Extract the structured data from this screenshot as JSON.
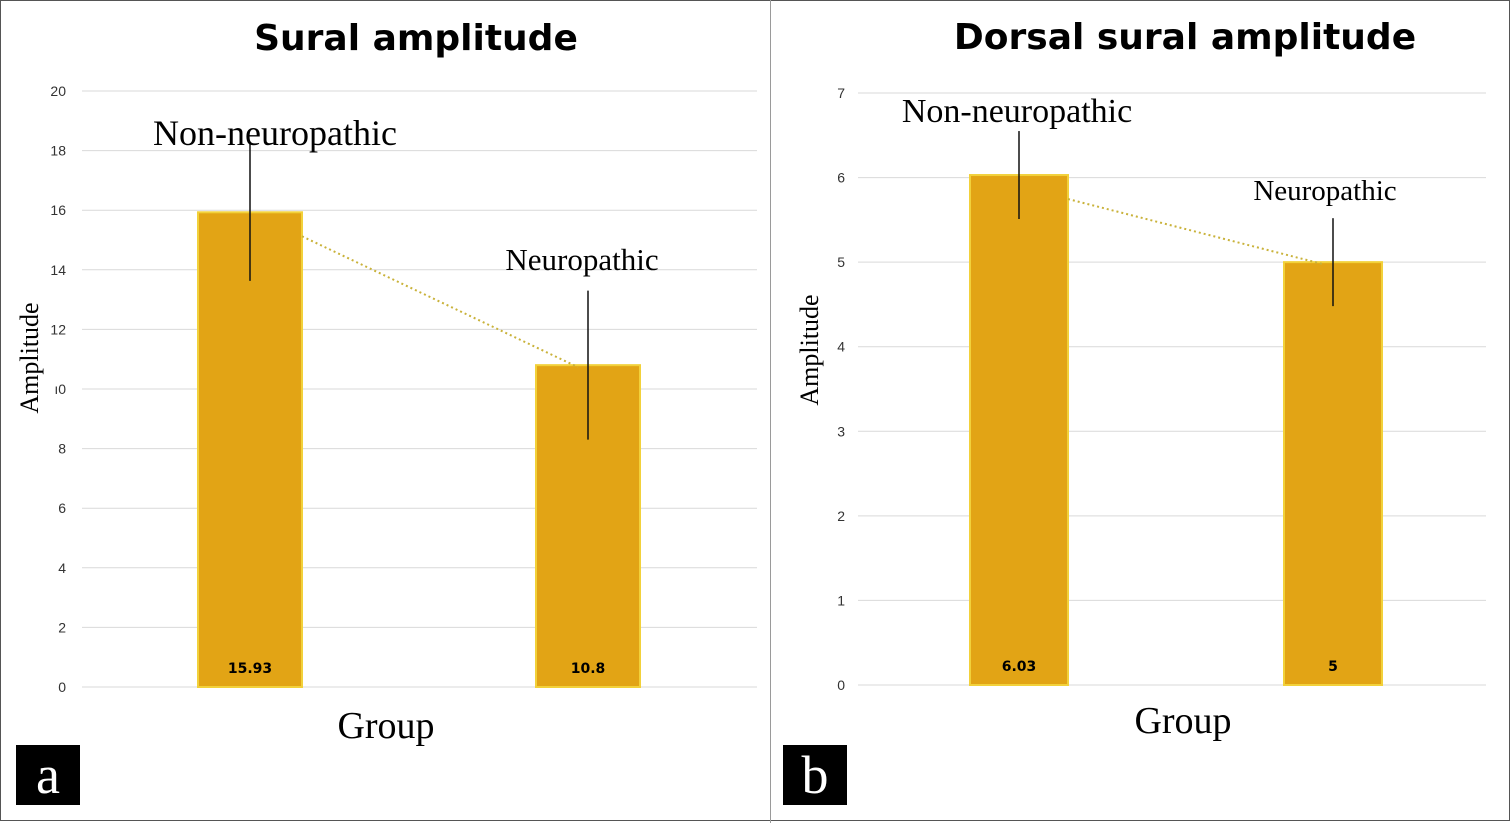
{
  "chart_data": [
    {
      "type": "bar",
      "panel_label": "a",
      "title": "Sural amplitude",
      "xlabel": "Group",
      "ylabel": "Amplitude",
      "categories": [
        "Non-neuropathic",
        "Neuropathic"
      ],
      "values": [
        15.93,
        10.8
      ],
      "value_labels": [
        "15.93",
        "10.8"
      ],
      "error": [
        2.3,
        2.5
      ],
      "ylim": [
        0,
        20
      ],
      "yticks": [
        "0",
        "2",
        "4",
        "6",
        "8",
        "ı0",
        "12",
        "14",
        "16",
        "18",
        "20"
      ],
      "grid": true,
      "trendline": true,
      "bar_color": "#E2A415",
      "bar_edge_color": "#F2D13A",
      "trend_color": "#C9B23A"
    },
    {
      "type": "bar",
      "panel_label": "b",
      "title": "Dorsal sural amplitude",
      "xlabel": "Group",
      "ylabel": "Amplitude",
      "categories": [
        "Non-neuropathic",
        "Neuropathic"
      ],
      "values": [
        6.03,
        5
      ],
      "value_labels": [
        "6.03",
        "5"
      ],
      "error": [
        0.52,
        0.52
      ],
      "ylim": [
        0,
        7
      ],
      "yticks": [
        "0",
        "1",
        "2",
        "3",
        "4",
        "5",
        "6",
        "7"
      ],
      "grid": true,
      "trendline": true,
      "bar_color": "#E2A415",
      "bar_edge_color": "#F2D13A",
      "trend_color": "#C9B23A"
    }
  ]
}
